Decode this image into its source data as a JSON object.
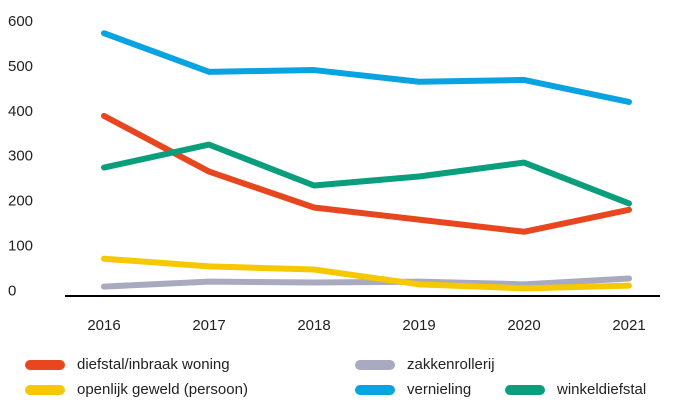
{
  "chart_data": {
    "type": "line",
    "x": [
      "2016",
      "2017",
      "2018",
      "2019",
      "2020",
      "2021"
    ],
    "series": [
      {
        "name": "diefstal/inbraak woning",
        "color": "#e8461e",
        "values": [
          391,
          267,
          187,
          160,
          133,
          182
        ]
      },
      {
        "name": "zakkenrollerij",
        "color": "#a9a9bf",
        "values": [
          11,
          22,
          20,
          22,
          16,
          29
        ]
      },
      {
        "name": "openlijk geweld (persoon)",
        "color": "#f6c800",
        "values": [
          73,
          56,
          49,
          16,
          7,
          13
        ]
      },
      {
        "name": "vernieling",
        "color": "#0aa3e2",
        "values": [
          575,
          489,
          493,
          467,
          471,
          422
        ]
      },
      {
        "name": "winkeldiefstal",
        "color": "#0a9e7c",
        "values": [
          276,
          327,
          236,
          256,
          287,
          196
        ]
      }
    ],
    "ylim": [
      -10,
      620
    ],
    "yticks": [
      0,
      100,
      200,
      300,
      400,
      500,
      600
    ],
    "grid": false
  }
}
